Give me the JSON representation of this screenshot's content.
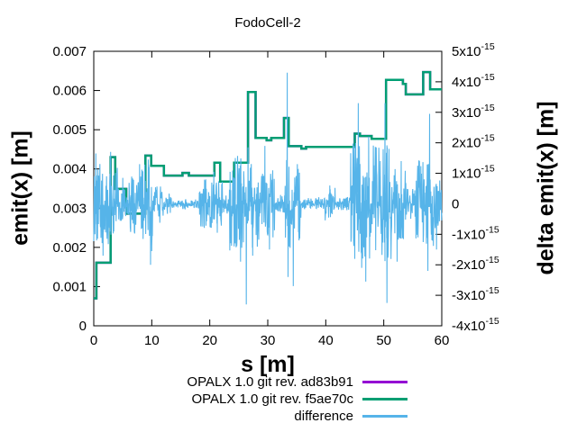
{
  "chart_data": {
    "type": "line",
    "title": "FodoCell-2",
    "xlabel": "s [m]",
    "ylabel": "emit(x) [m]",
    "y2label": "delta emit(x) [m]",
    "xlim": [
      0,
      60
    ],
    "ylim": [
      0,
      0.007
    ],
    "y2lim": [
      -4e-15,
      5e-15
    ],
    "grid": false,
    "background": "#ffffff",
    "axis_color": "#000000",
    "legend_position": "below-plot-right",
    "xticks": [
      {
        "v": 0,
        "label": "0"
      },
      {
        "v": 10,
        "label": "10"
      },
      {
        "v": 20,
        "label": "20"
      },
      {
        "v": 30,
        "label": "30"
      },
      {
        "v": 40,
        "label": "40"
      },
      {
        "v": 50,
        "label": "50"
      },
      {
        "v": 60,
        "label": "60"
      }
    ],
    "yticks": [
      {
        "v": 0,
        "label": "0"
      },
      {
        "v": 0.001,
        "label": "0.001"
      },
      {
        "v": 0.002,
        "label": "0.002"
      },
      {
        "v": 0.003,
        "label": "0.003"
      },
      {
        "v": 0.004,
        "label": "0.004"
      },
      {
        "v": 0.005,
        "label": "0.005"
      },
      {
        "v": 0.006,
        "label": "0.006"
      },
      {
        "v": 0.007,
        "label": "0.007"
      }
    ],
    "y2ticks": [
      {
        "v": -4e-15,
        "label": "-4x10^-15"
      },
      {
        "v": -3e-15,
        "label": "-3x10^-15"
      },
      {
        "v": -2e-15,
        "label": "-2x10^-15"
      },
      {
        "v": -1e-15,
        "label": "-1x10^-15"
      },
      {
        "v": 0,
        "label": "0"
      },
      {
        "v": 1e-15,
        "label": "1x10^-15"
      },
      {
        "v": 2e-15,
        "label": "2x10^-15"
      },
      {
        "v": 3e-15,
        "label": "3x10^-15"
      },
      {
        "v": 4e-15,
        "label": "4x10^-15"
      },
      {
        "v": 5e-15,
        "label": "5x10^-15"
      }
    ],
    "legend": [
      {
        "label": "OPALX 1.0 git rev. ad83b91",
        "color": "#9400d3"
      },
      {
        "label": "OPALX 1.0 git rev. f5ae70c",
        "color": "#009e73"
      },
      {
        "label": "difference",
        "color": "#56b4e9"
      }
    ],
    "series": [
      {
        "name": "OPALX 1.0 git rev. ad83b91",
        "color": "#9400d3",
        "axis": "y1",
        "style": "steps",
        "points": [
          [
            0,
            0.0007
          ],
          [
            0.45,
            0.00161
          ],
          [
            2.9,
            0.0043
          ],
          [
            3.7,
            0.00349
          ],
          [
            5.6,
            0.00286
          ],
          [
            8.9,
            0.00434
          ],
          [
            9.9,
            0.00408
          ],
          [
            12.1,
            0.00383
          ],
          [
            15.3,
            0.0039
          ],
          [
            16.4,
            0.00383
          ],
          [
            20.8,
            0.00416
          ],
          [
            21.8,
            0.00368
          ],
          [
            24.2,
            0.00416
          ],
          [
            26.6,
            0.00596
          ],
          [
            27.9,
            0.00479
          ],
          [
            29.8,
            0.00473
          ],
          [
            30.6,
            0.00479
          ],
          [
            32.8,
            0.0053
          ],
          [
            33.6,
            0.00458
          ],
          [
            35.8,
            0.00452
          ],
          [
            36.6,
            0.00456
          ],
          [
            45.0,
            0.0049
          ],
          [
            45.9,
            0.00484
          ],
          [
            47.9,
            0.00477
          ],
          [
            50.4,
            0.00627
          ],
          [
            53.3,
            0.00617
          ],
          [
            53.8,
            0.0059
          ],
          [
            56.8,
            0.00647
          ],
          [
            58.0,
            0.00603
          ],
          [
            60,
            0.00603
          ]
        ]
      },
      {
        "name": "OPALX 1.0 git rev. f5ae70c",
        "color": "#009e73",
        "axis": "y1",
        "style": "steps",
        "points": [
          [
            0,
            0.0007
          ],
          [
            0.45,
            0.00161
          ],
          [
            2.9,
            0.0043
          ],
          [
            3.7,
            0.00349
          ],
          [
            5.6,
            0.00286
          ],
          [
            8.9,
            0.00434
          ],
          [
            9.9,
            0.00408
          ],
          [
            12.1,
            0.00383
          ],
          [
            15.3,
            0.0039
          ],
          [
            16.4,
            0.00383
          ],
          [
            20.8,
            0.00416
          ],
          [
            21.8,
            0.00368
          ],
          [
            24.2,
            0.00416
          ],
          [
            26.6,
            0.00596
          ],
          [
            27.9,
            0.00479
          ],
          [
            29.8,
            0.00473
          ],
          [
            30.6,
            0.00479
          ],
          [
            32.8,
            0.0053
          ],
          [
            33.6,
            0.00458
          ],
          [
            35.8,
            0.00452
          ],
          [
            36.6,
            0.00456
          ],
          [
            45.0,
            0.0049
          ],
          [
            45.9,
            0.00484
          ],
          [
            47.9,
            0.00477
          ],
          [
            50.4,
            0.00627
          ],
          [
            53.3,
            0.00617
          ],
          [
            53.8,
            0.0059
          ],
          [
            56.8,
            0.00647
          ],
          [
            58.0,
            0.00603
          ],
          [
            60,
            0.00603
          ]
        ]
      },
      {
        "name": "difference",
        "color": "#56b4e9",
        "axis": "y2",
        "style": "noise",
        "envelope_1e15": [
          [
            0,
            1.0,
            1.5
          ],
          [
            1.0,
            2.6,
            1.4
          ],
          [
            2.6,
            4.1,
            1.2
          ],
          [
            4.1,
            6.0,
            0.55
          ],
          [
            6.0,
            8.2,
            0.95
          ],
          [
            8.2,
            10.3,
            1.4
          ],
          [
            10.3,
            12.0,
            0.6
          ],
          [
            12.0,
            13.5,
            0.35
          ],
          [
            13.5,
            18.2,
            0.16
          ],
          [
            18.2,
            22.2,
            0.8
          ],
          [
            22.2,
            23.4,
            0.35
          ],
          [
            23.4,
            28.6,
            1.6
          ],
          [
            28.6,
            31.2,
            1.1
          ],
          [
            31.2,
            32.9,
            0.3
          ],
          [
            32.9,
            33.9,
            1.7
          ],
          [
            33.9,
            35.9,
            1.2
          ],
          [
            35.9,
            39.8,
            0.2
          ],
          [
            39.8,
            41.6,
            0.55
          ],
          [
            41.6,
            44.2,
            0.22
          ],
          [
            44.2,
            48.1,
            2.0
          ],
          [
            48.1,
            51.3,
            1.9
          ],
          [
            51.3,
            53.9,
            1.2
          ],
          [
            53.9,
            55.5,
            0.5
          ],
          [
            55.5,
            58.7,
            1.4
          ],
          [
            58.7,
            60,
            0.8
          ]
        ],
        "spikes_1e15": [
          [
            0.35,
            1.65
          ],
          [
            0.5,
            -1.2
          ],
          [
            1.6,
            -1.7
          ],
          [
            2.9,
            1.7
          ],
          [
            5.0,
            0.85
          ],
          [
            7.9,
            1.3
          ],
          [
            9.4,
            1.45
          ],
          [
            9.8,
            -2.0
          ],
          [
            10.0,
            -1.55
          ],
          [
            19.3,
            0.8
          ],
          [
            20.7,
            1.05
          ],
          [
            21.3,
            -0.95
          ],
          [
            24.4,
            1.5
          ],
          [
            25.3,
            -1.9
          ],
          [
            26.3,
            -3.3
          ],
          [
            26.6,
            1.85
          ],
          [
            27.4,
            -1.7
          ],
          [
            29.5,
            1.9
          ],
          [
            30.3,
            -1.5
          ],
          [
            33.35,
            4.3
          ],
          [
            33.5,
            -2.4
          ],
          [
            34.4,
            -2.7
          ],
          [
            35.1,
            1.3
          ],
          [
            40.7,
            0.6
          ],
          [
            44.9,
            1.9
          ],
          [
            45.6,
            3.3
          ],
          [
            46.2,
            -2.1
          ],
          [
            46.9,
            -2.55
          ],
          [
            47.4,
            2.2
          ],
          [
            49.4,
            1.4
          ],
          [
            50.2,
            3.3
          ],
          [
            50.55,
            -3.25
          ],
          [
            50.9,
            1.8
          ],
          [
            52.3,
            -1.9
          ],
          [
            53.0,
            1.4
          ],
          [
            56.4,
            1.1
          ],
          [
            57.6,
            -2.2
          ],
          [
            57.9,
            2.95
          ],
          [
            59.1,
            -1.5
          ]
        ]
      }
    ]
  }
}
